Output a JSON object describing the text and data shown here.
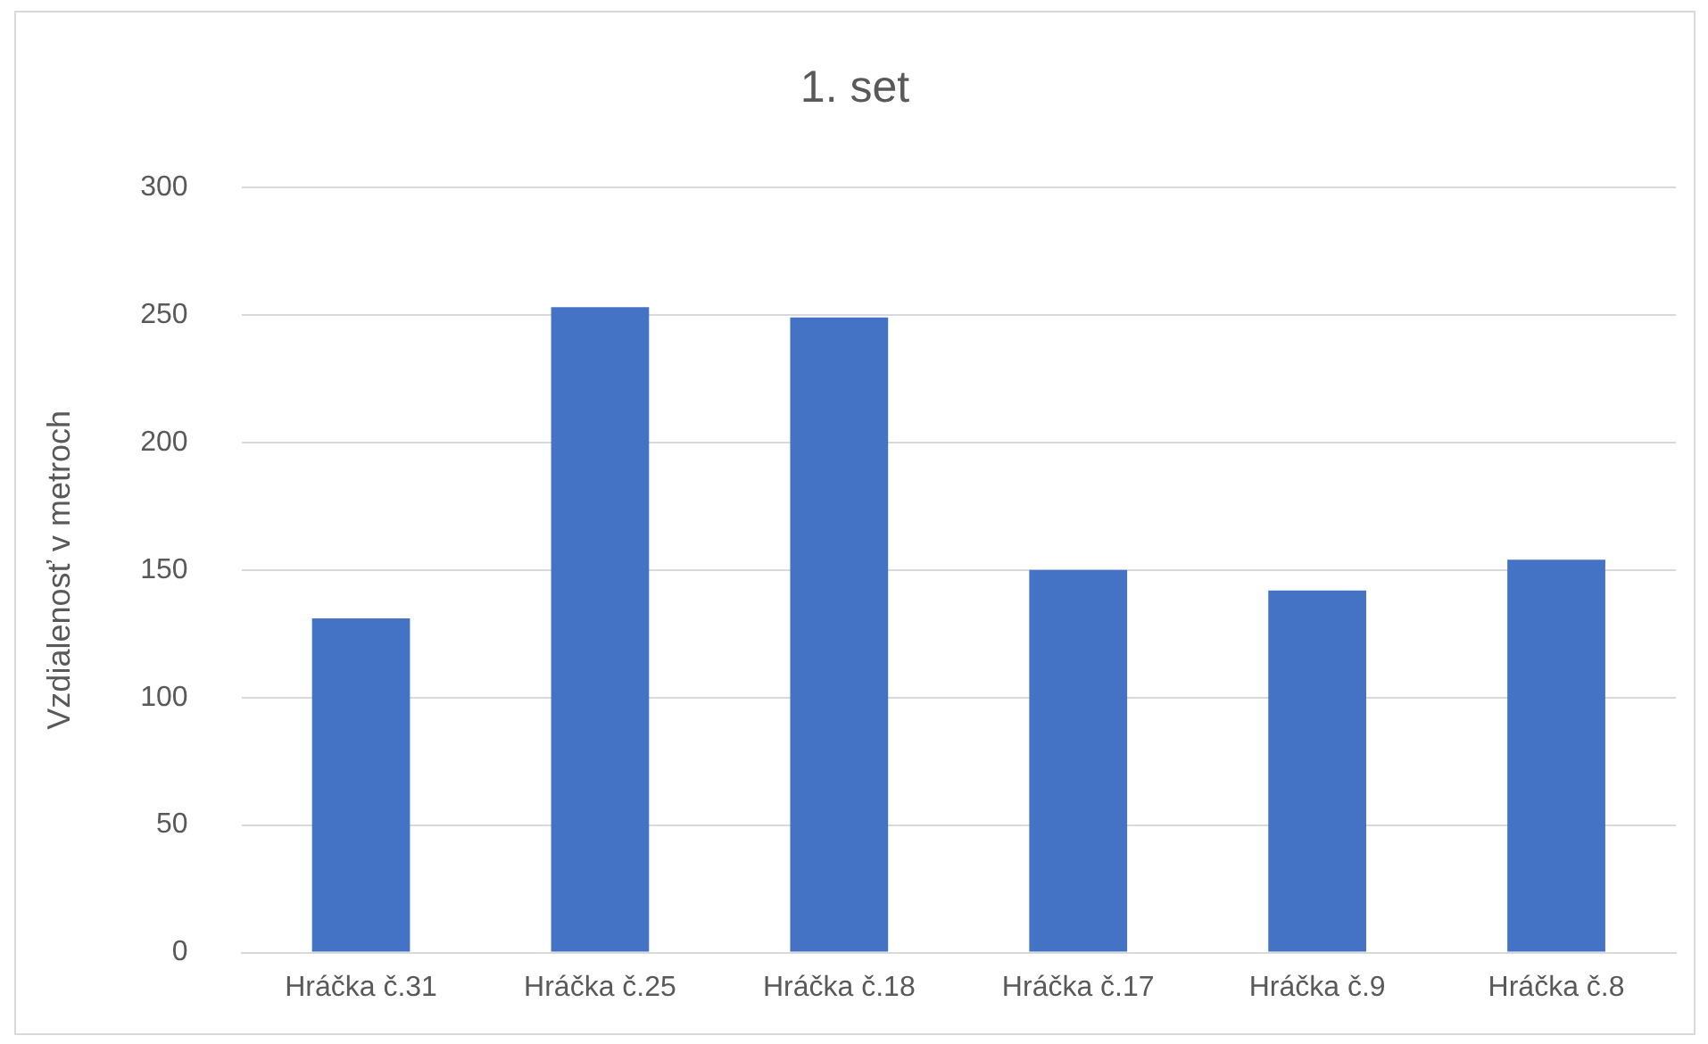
{
  "chart_data": {
    "type": "bar",
    "title": "1. set",
    "ylabel": "Vzdialenosť v metroch",
    "categories": [
      "Hráčka č.31",
      "Hráčka č.25",
      "Hráčka č.18",
      "Hráčka č.17",
      "Hráčka č.9",
      "Hráčka č.8"
    ],
    "values": [
      131,
      253,
      249,
      150,
      142,
      154
    ],
    "color": "#4472c4",
    "ylim": [
      0,
      300
    ],
    "yticks": [
      0,
      50,
      100,
      150,
      200,
      250,
      300
    ],
    "grid": "y",
    "legend": false
  }
}
